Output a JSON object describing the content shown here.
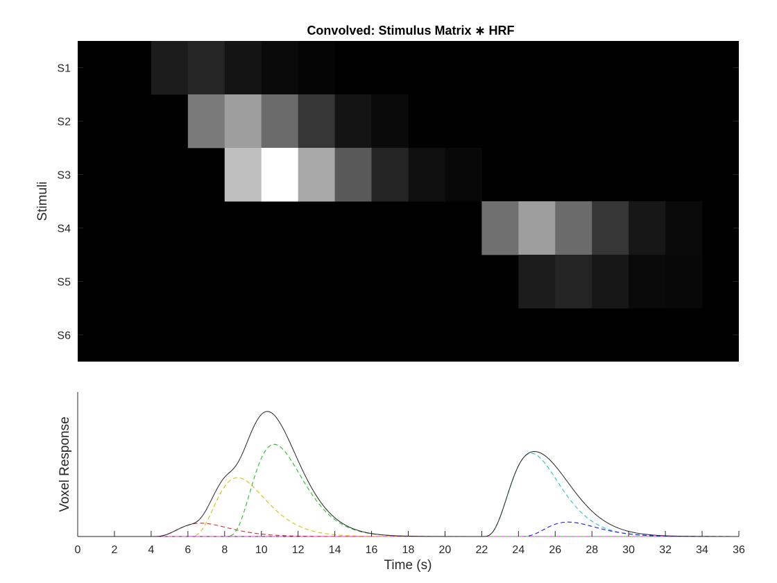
{
  "chart_data": [
    {
      "type": "heatmap",
      "title": "Convolved: Stimulus Matrix ∗ HRF",
      "ylabel": "Stimuli",
      "rows": [
        "S1",
        "S2",
        "S3",
        "S4",
        "S5",
        "S6"
      ],
      "x_bins_start_s": [
        0,
        2,
        4,
        6,
        8,
        10,
        12,
        14,
        16,
        18,
        20,
        22,
        24,
        26,
        28,
        30,
        32,
        34
      ],
      "bin_width_s": 2,
      "xlim": [
        0,
        36
      ],
      "clim": [
        0,
        1
      ],
      "colormap": "gray",
      "values": [
        [
          0,
          0,
          0.11,
          0.15,
          0.08,
          0.04,
          0.02,
          0,
          0,
          0,
          0,
          0,
          0,
          0,
          0,
          0,
          0,
          0
        ],
        [
          0,
          0,
          0,
          0.48,
          0.62,
          0.42,
          0.21,
          0.08,
          0.04,
          0,
          0,
          0,
          0,
          0,
          0,
          0,
          0,
          0
        ],
        [
          0,
          0,
          0,
          0,
          0.75,
          1.0,
          0.66,
          0.35,
          0.14,
          0.06,
          0.03,
          0,
          0,
          0,
          0,
          0,
          0,
          0
        ],
        [
          0,
          0,
          0,
          0,
          0,
          0,
          0,
          0,
          0,
          0,
          0,
          0.44,
          0.62,
          0.42,
          0.21,
          0.09,
          0.04,
          0
        ],
        [
          0,
          0,
          0,
          0,
          0,
          0,
          0,
          0,
          0,
          0,
          0,
          0,
          0.11,
          0.14,
          0.09,
          0.04,
          0.03,
          0
        ],
        [
          0,
          0,
          0,
          0,
          0,
          0,
          0,
          0,
          0,
          0,
          0,
          0,
          0,
          0,
          0,
          0,
          0,
          0
        ]
      ]
    },
    {
      "type": "line",
      "xlabel": "Time (s)",
      "ylabel": "Voxel Response",
      "xlim": [
        0,
        36
      ],
      "ylim": [
        0,
        1.3
      ],
      "xticks": [
        0,
        2,
        4,
        6,
        8,
        10,
        12,
        14,
        16,
        18,
        20,
        22,
        24,
        26,
        28,
        30,
        32,
        34,
        36
      ],
      "series": [
        {
          "color": "#d62728",
          "dash": true,
          "amp": 0.12,
          "onset": 4.0,
          "peak_delay": 2.7
        },
        {
          "color": "#d4c200",
          "dash": true,
          "amp": 0.53,
          "onset": 6.0,
          "peak_delay": 2.7
        },
        {
          "color": "#22c322",
          "dash": true,
          "amp": 0.83,
          "onset": 8.0,
          "peak_delay": 2.7
        },
        {
          "color": "#22c7c7",
          "dash": true,
          "amp": 0.75,
          "onset": 22.0,
          "peak_delay": 2.7
        },
        {
          "color": "#1a1ae6",
          "dash": true,
          "amp": 0.13,
          "onset": 24.0,
          "peak_delay": 2.7
        },
        {
          "color": "#e632e6",
          "dash": true,
          "amp": 0.0,
          "onset": 0.0,
          "peak_delay": 2.7
        }
      ],
      "sum_line": {
        "color": "#222222",
        "of": "all_series"
      }
    }
  ]
}
